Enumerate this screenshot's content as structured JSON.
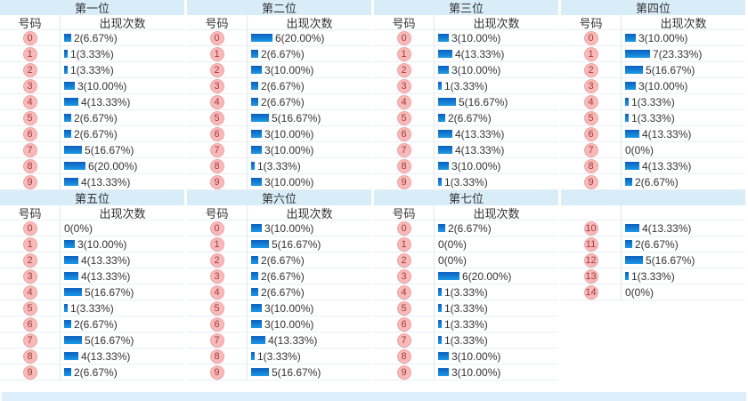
{
  "colors": {
    "page_bg": "#ffffff",
    "band_bg": "#d9edf8",
    "row_border": "#e9eff5",
    "divider": "#e0e9f0",
    "bar_top": "#0b5ec0",
    "bar_bottom": "#1b9ae4",
    "badge_bg": "#f8b9b9",
    "badge_border": "#f0a2a2",
    "badge_text": "#a33b3b",
    "text": "#333333",
    "strip_bg": "#ddeffa"
  },
  "chart_data": [
    {
      "type": "bar",
      "title": "第一位",
      "xlabel": "号码",
      "ylabel": "出现次数",
      "categories": [
        "0",
        "1",
        "2",
        "3",
        "4",
        "5",
        "6",
        "7",
        "8",
        "9"
      ],
      "values": [
        2,
        1,
        1,
        3,
        4,
        2,
        2,
        5,
        6,
        4
      ],
      "labels": [
        "2(6.67%)",
        "1(3.33%)",
        "1(3.33%)",
        "3(10.00%)",
        "4(13.33%)",
        "2(6.67%)",
        "2(6.67%)",
        "5(16.67%)",
        "6(20.00%)",
        "4(13.33%)"
      ]
    },
    {
      "type": "bar",
      "title": "第二位",
      "xlabel": "号码",
      "ylabel": "出现次数",
      "categories": [
        "0",
        "1",
        "2",
        "3",
        "4",
        "5",
        "6",
        "7",
        "8",
        "9"
      ],
      "values": [
        6,
        2,
        3,
        2,
        2,
        5,
        3,
        3,
        1,
        3
      ],
      "labels": [
        "6(20.00%)",
        "2(6.67%)",
        "3(10.00%)",
        "2(6.67%)",
        "2(6.67%)",
        "5(16.67%)",
        "3(10.00%)",
        "3(10.00%)",
        "1(3.33%)",
        "3(10.00%)"
      ]
    },
    {
      "type": "bar",
      "title": "第三位",
      "xlabel": "号码",
      "ylabel": "出现次数",
      "categories": [
        "0",
        "1",
        "2",
        "3",
        "4",
        "5",
        "6",
        "7",
        "8",
        "9"
      ],
      "values": [
        3,
        4,
        3,
        1,
        5,
        2,
        4,
        4,
        3,
        1
      ],
      "labels": [
        "3(10.00%)",
        "4(13.33%)",
        "3(10.00%)",
        "1(3.33%)",
        "5(16.67%)",
        "2(6.67%)",
        "4(13.33%)",
        "4(13.33%)",
        "3(10.00%)",
        "1(3.33%)"
      ]
    },
    {
      "type": "bar",
      "title": "第四位",
      "xlabel": "号码",
      "ylabel": "出现次数",
      "categories": [
        "0",
        "1",
        "2",
        "3",
        "4",
        "5",
        "6",
        "7",
        "8",
        "9"
      ],
      "values": [
        3,
        7,
        5,
        3,
        1,
        1,
        4,
        0,
        4,
        2
      ],
      "labels": [
        "3(10.00%)",
        "7(23.33%)",
        "5(16.67%)",
        "3(10.00%)",
        "1(3.33%)",
        "1(3.33%)",
        "4(13.33%)",
        "0(0%)",
        "4(13.33%)",
        "2(6.67%)"
      ]
    },
    {
      "type": "bar",
      "title": "第五位",
      "xlabel": "号码",
      "ylabel": "出现次数",
      "categories": [
        "0",
        "1",
        "2",
        "3",
        "4",
        "5",
        "6",
        "7",
        "8",
        "9"
      ],
      "values": [
        0,
        3,
        4,
        4,
        5,
        1,
        2,
        5,
        4,
        2
      ],
      "labels": [
        "0(0%)",
        "3(10.00%)",
        "4(13.33%)",
        "4(13.33%)",
        "5(16.67%)",
        "1(3.33%)",
        "2(6.67%)",
        "5(16.67%)",
        "4(13.33%)",
        "2(6.67%)"
      ]
    },
    {
      "type": "bar",
      "title": "第六位",
      "xlabel": "号码",
      "ylabel": "出现次数",
      "categories": [
        "0",
        "1",
        "2",
        "3",
        "4",
        "5",
        "6",
        "7",
        "8",
        "9"
      ],
      "values": [
        3,
        5,
        2,
        2,
        2,
        3,
        3,
        4,
        1,
        5
      ],
      "labels": [
        "3(10.00%)",
        "5(16.67%)",
        "2(6.67%)",
        "2(6.67%)",
        "2(6.67%)",
        "3(10.00%)",
        "3(10.00%)",
        "4(13.33%)",
        "1(3.33%)",
        "5(16.67%)"
      ]
    },
    {
      "type": "bar",
      "title": "第七位",
      "xlabel": "号码",
      "ylabel": "出现次数",
      "categories": [
        "0",
        "1",
        "2",
        "3",
        "4",
        "5",
        "6",
        "7",
        "8",
        "9"
      ],
      "values": [
        2,
        0,
        0,
        6,
        1,
        1,
        1,
        1,
        3,
        3
      ],
      "labels": [
        "2(6.67%)",
        "0(0%)",
        "0(0%)",
        "6(20.00%)",
        "1(3.33%)",
        "1(3.33%)",
        "1(3.33%)",
        "1(3.33%)",
        "3(10.00%)",
        "3(10.00%)"
      ]
    },
    {
      "type": "bar",
      "title": "",
      "xlabel": "",
      "ylabel": "",
      "categories": [
        "10",
        "11",
        "12",
        "13",
        "14"
      ],
      "values": [
        4,
        2,
        5,
        1,
        0
      ],
      "labels": [
        "4(13.33%)",
        "2(6.67%)",
        "5(16.67%)",
        "1(3.33%)",
        "0(0%)"
      ]
    }
  ]
}
